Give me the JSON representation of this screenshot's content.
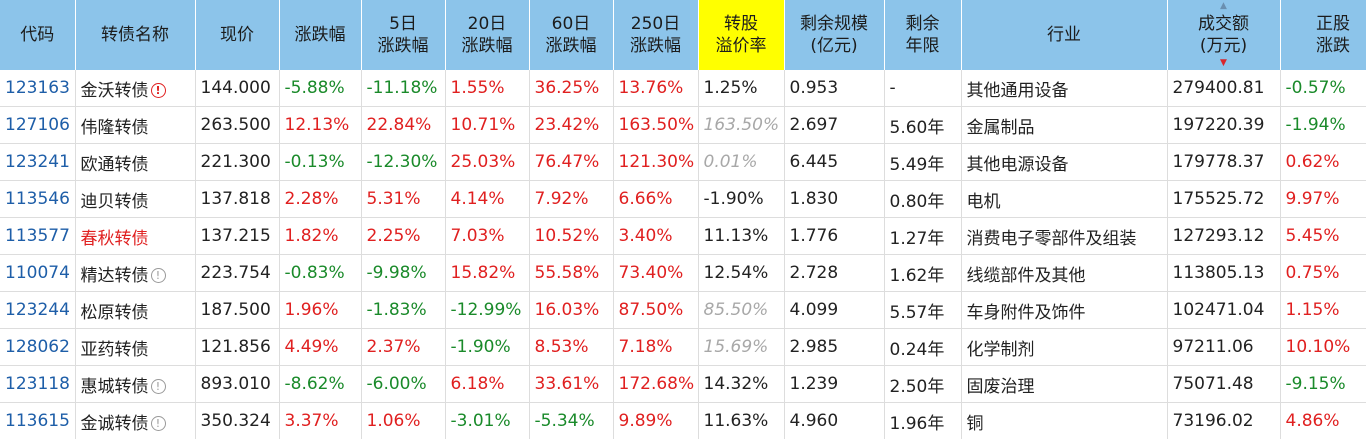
{
  "columns": [
    {
      "label": "代码"
    },
    {
      "label": "转债名称"
    },
    {
      "label": "现价"
    },
    {
      "label": "涨跌幅"
    },
    {
      "label": "5日",
      "label2": "涨跌幅"
    },
    {
      "label": "20日",
      "label2": "涨跌幅"
    },
    {
      "label": "60日",
      "label2": "涨跌幅"
    },
    {
      "label": "250日",
      "label2": "涨跌幅"
    },
    {
      "label": "转股",
      "label2": "溢价率"
    },
    {
      "label": "剩余规模",
      "label2": "(亿元)"
    },
    {
      "label": "剩余",
      "label2": "年限"
    },
    {
      "label": "行业"
    },
    {
      "label": "成交额",
      "label2": "(万元)"
    },
    {
      "label": "正股",
      "label2": "涨跌"
    }
  ],
  "header_colors": {
    "background": "#8cc4ea",
    "highlight": "#ffff00",
    "up": "#e02020",
    "down": "#1a8a2a",
    "code": "#1e5ea8",
    "muted": "#a8a8a8"
  },
  "sort": {
    "column": "成交额",
    "direction": "desc"
  },
  "rows": [
    {
      "code": "123163",
      "name": "金沃转债",
      "name_style": "neutral",
      "icon": "warning-red",
      "icon_glyph": "!",
      "price": "144.000",
      "chg": "-5.88%",
      "chg5": "-11.18%",
      "chg20": "1.55%",
      "chg60": "36.25%",
      "chg250": "13.76%",
      "premium": "1.25%",
      "premium_style": "neutral",
      "size": "0.953",
      "years": "-",
      "industry": "其他通用设备",
      "turnover": "279400.81",
      "stock_chg": "-0.57%"
    },
    {
      "code": "127106",
      "name": "伟隆转债",
      "name_style": "neutral",
      "icon": "",
      "icon_glyph": "",
      "price": "263.500",
      "chg": "12.13%",
      "chg5": "22.84%",
      "chg20": "10.71%",
      "chg60": "23.42%",
      "chg250": "163.50%",
      "premium": "163.50%",
      "premium_style": "muted",
      "size": "2.697",
      "years": "5.60年",
      "industry": "金属制品",
      "turnover": "197220.39",
      "stock_chg": "-1.94%"
    },
    {
      "code": "123241",
      "name": "欧通转债",
      "name_style": "neutral",
      "icon": "",
      "icon_glyph": "",
      "price": "221.300",
      "chg": "-0.13%",
      "chg5": "-12.30%",
      "chg20": "25.03%",
      "chg60": "76.47%",
      "chg250": "121.30%",
      "premium": "0.01%",
      "premium_style": "muted",
      "size": "6.445",
      "years": "5.49年",
      "industry": "其他电源设备",
      "turnover": "179778.37",
      "stock_chg": "0.62%"
    },
    {
      "code": "113546",
      "name": "迪贝转债",
      "name_style": "neutral",
      "icon": "",
      "icon_glyph": "",
      "price": "137.818",
      "chg": "2.28%",
      "chg5": "5.31%",
      "chg20": "4.14%",
      "chg60": "7.92%",
      "chg250": "6.66%",
      "premium": "-1.90%",
      "premium_style": "neutral",
      "size": "1.830",
      "years": "0.80年",
      "industry": "电机",
      "turnover": "175525.72",
      "stock_chg": "9.97%"
    },
    {
      "code": "113577",
      "name": "春秋转债",
      "name_style": "red",
      "icon": "",
      "icon_glyph": "",
      "price": "137.215",
      "chg": "1.82%",
      "chg5": "2.25%",
      "chg20": "7.03%",
      "chg60": "10.52%",
      "chg250": "3.40%",
      "premium": "11.13%",
      "premium_style": "neutral",
      "size": "1.776",
      "years": "1.27年",
      "industry": "消费电子零部件及组装",
      "turnover": "127293.12",
      "stock_chg": "5.45%"
    },
    {
      "code": "110074",
      "name": "精达转债",
      "name_style": "neutral",
      "icon": "info-grey",
      "icon_glyph": "!",
      "price": "223.754",
      "chg": "-0.83%",
      "chg5": "-9.98%",
      "chg20": "15.82%",
      "chg60": "55.58%",
      "chg250": "73.40%",
      "premium": "12.54%",
      "premium_style": "neutral",
      "size": "2.728",
      "years": "1.62年",
      "industry": "线缆部件及其他",
      "turnover": "113805.13",
      "stock_chg": "0.75%"
    },
    {
      "code": "123244",
      "name": "松原转债",
      "name_style": "neutral",
      "icon": "",
      "icon_glyph": "",
      "price": "187.500",
      "chg": "1.96%",
      "chg5": "-1.83%",
      "chg20": "-12.99%",
      "chg60": "16.03%",
      "chg250": "87.50%",
      "premium": "85.50%",
      "premium_style": "muted",
      "size": "4.099",
      "years": "5.57年",
      "industry": "车身附件及饰件",
      "turnover": "102471.04",
      "stock_chg": "1.15%"
    },
    {
      "code": "128062",
      "name": "亚药转债",
      "name_style": "neutral",
      "icon": "",
      "icon_glyph": "",
      "price": "121.856",
      "chg": "4.49%",
      "chg5": "2.37%",
      "chg20": "-1.90%",
      "chg60": "8.53%",
      "chg250": "7.18%",
      "premium": "15.69%",
      "premium_style": "muted",
      "size": "2.985",
      "years": "0.24年",
      "industry": "化学制剂",
      "turnover": "97211.06",
      "stock_chg": "10.10%"
    },
    {
      "code": "123118",
      "name": "惠城转债",
      "name_style": "neutral",
      "icon": "info-grey",
      "icon_glyph": "!",
      "price": "893.010",
      "chg": "-8.62%",
      "chg5": "-6.00%",
      "chg20": "6.18%",
      "chg60": "33.61%",
      "chg250": "172.68%",
      "premium": "14.32%",
      "premium_style": "neutral",
      "size": "1.239",
      "years": "2.50年",
      "industry": "固废治理",
      "turnover": "75071.48",
      "stock_chg": "-9.15%"
    },
    {
      "code": "113615",
      "name": "金诚转债",
      "name_style": "neutral",
      "icon": "info-grey",
      "icon_glyph": "!",
      "price": "350.324",
      "chg": "3.37%",
      "chg5": "1.06%",
      "chg20": "-3.01%",
      "chg60": "-5.34%",
      "chg250": "9.89%",
      "premium": "11.63%",
      "premium_style": "neutral",
      "size": "4.960",
      "years": "1.96年",
      "industry": "铜",
      "turnover": "73196.02",
      "stock_chg": "4.86%"
    }
  ]
}
